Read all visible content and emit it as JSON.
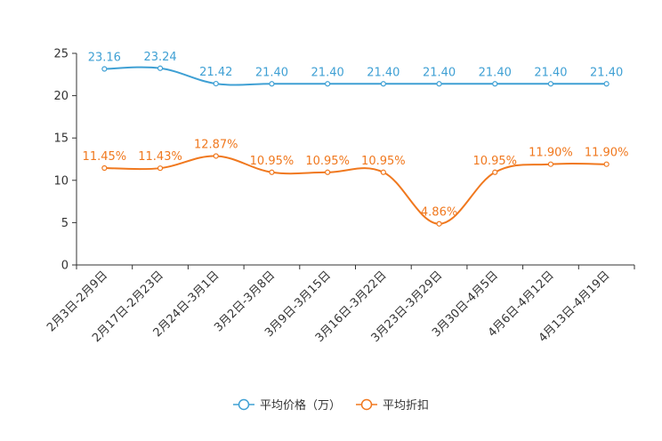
{
  "chart_data": {
    "type": "line",
    "categories": [
      "2月3日-2月9日",
      "2月17日-2月23日",
      "2月24日-3月1日",
      "3月2日-3月8日",
      "3月9日-3月15日",
      "3月16日-3月22日",
      "3月23日-3月29日",
      "3月30日-4月5日",
      "4月6日-4月12日",
      "4月13日-4月19日"
    ],
    "ylim": [
      0,
      25
    ],
    "yticks": [
      0,
      5,
      10,
      15,
      20,
      25
    ],
    "series": [
      {
        "name": "平均价格（万）",
        "color": "#3fa0d4",
        "values": [
          23.16,
          23.24,
          21.42,
          21.4,
          21.4,
          21.4,
          21.4,
          21.4,
          21.4,
          21.4
        ],
        "labels": [
          "23.16",
          "23.24",
          "21.42",
          "21.40",
          "21.40",
          "21.40",
          "21.40",
          "21.40",
          "21.40",
          "21.40"
        ]
      },
      {
        "name": "平均折扣",
        "color": "#f0781e",
        "values": [
          11.45,
          11.43,
          12.87,
          10.95,
          10.95,
          10.95,
          4.86,
          10.95,
          11.9,
          11.9
        ],
        "labels": [
          "11.45%",
          "11.43%",
          "12.87%",
          "10.95%",
          "10.95%",
          "10.95%",
          "4.86%",
          "10.95%",
          "11.90%",
          "11.90%"
        ]
      }
    ],
    "legend": "bottom-center",
    "grid": false
  }
}
